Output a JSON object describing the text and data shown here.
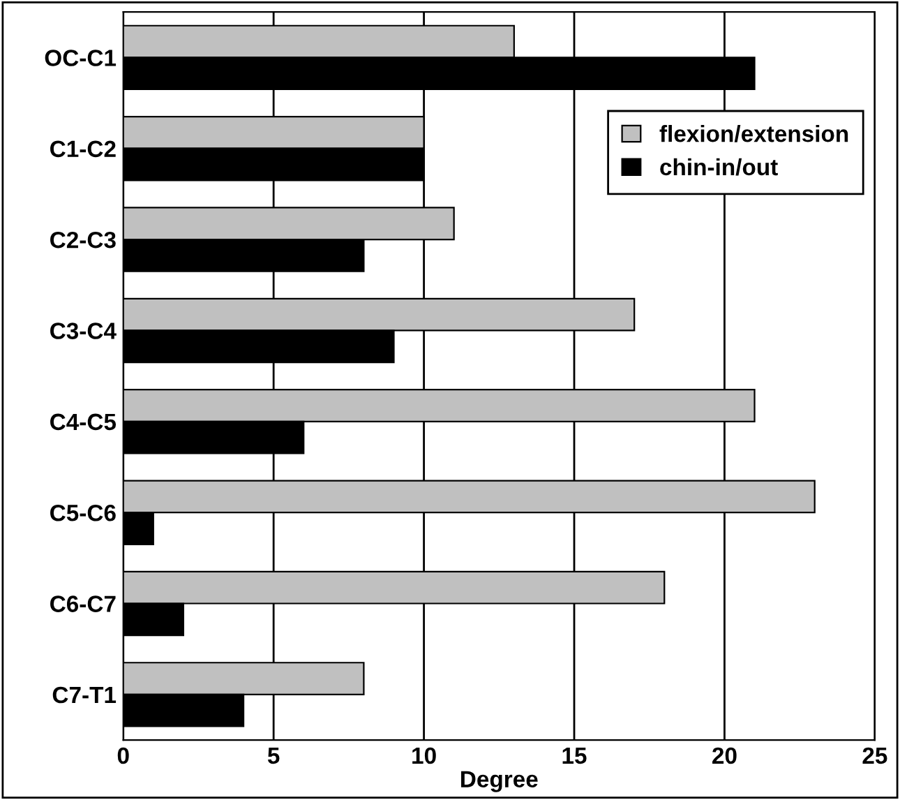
{
  "chart_data": {
    "type": "bar",
    "orientation": "horizontal",
    "xlabel": "Degree",
    "categories": [
      "OC-C1",
      "C1-C2",
      "C2-C3",
      "C3-C4",
      "C4-C5",
      "C5-C6",
      "C6-C7",
      "C7-T1"
    ],
    "series": [
      {
        "name": "flexion/extension",
        "color": "#c0c0c0",
        "values": [
          13,
          10,
          11,
          17,
          21,
          23,
          18,
          8
        ]
      },
      {
        "name": "chin-in/out",
        "color": "#000000",
        "values": [
          21,
          10,
          8,
          9,
          6,
          1,
          2,
          4
        ]
      }
    ],
    "xlim": [
      0,
      25
    ],
    "xticks": [
      0,
      5,
      10,
      15,
      20,
      25
    ],
    "grid": "x",
    "legend": "top right"
  }
}
